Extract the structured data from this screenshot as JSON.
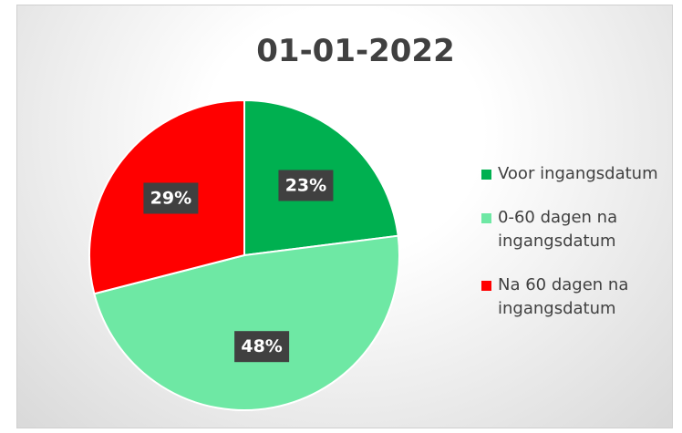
{
  "chart_data": {
    "type": "pie",
    "title": "01-01-2022",
    "categories": [
      "Voor ingangsdatum",
      "0-60 dagen na ingangsdatum",
      "Na 60 dagen na ingangsdatum"
    ],
    "values": [
      23,
      48,
      29
    ],
    "value_labels": [
      "23%",
      "48%",
      "29%"
    ],
    "colors": [
      "#00b050",
      "#6ee8a4",
      "#ff0000"
    ],
    "legend": "right"
  }
}
